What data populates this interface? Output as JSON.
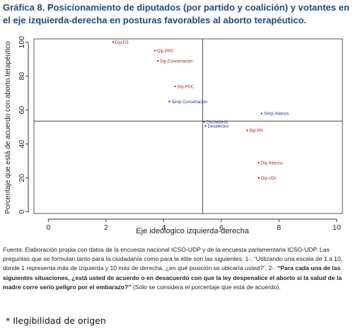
{
  "title": "Gráfica 8. Posicionamiento de diputados (por partido y coalición) y votantes en el eje izquierda-derecha  en posturas favorables al aborto terapéutico.",
  "chart_data": {
    "type": "scatter",
    "xlabel": "Eje ideologico izquierda-derecha",
    "ylabel": "Porcentaje que está de acuerdo con aborto terapéutico",
    "xlim": [
      -0.5,
      10.2
    ],
    "ylim": [
      -1,
      102
    ],
    "xticks": [
      0,
      2,
      4,
      6,
      8,
      10
    ],
    "yticks": [
      0,
      20,
      40,
      60,
      80,
      100
    ],
    "reference_lines": {
      "x": 5.35,
      "y": 53.5
    },
    "point_colors": {
      "diputados": "#b22222",
      "votantes": "#1f3c88"
    },
    "points": [
      {
        "label": "Dip.PS",
        "x": 2.25,
        "y": 100,
        "group": "diputados"
      },
      {
        "label": "Dip.PPD",
        "x": 3.7,
        "y": 95,
        "group": "diputados"
      },
      {
        "label": "Dip.Concertación",
        "x": 3.8,
        "y": 89,
        "group": "diputados"
      },
      {
        "label": "Dip.PDC",
        "x": 4.4,
        "y": 74,
        "group": "diputados"
      },
      {
        "label": "Simp.Concertación",
        "x": 4.2,
        "y": 65,
        "group": "votantes"
      },
      {
        "label": "Ciudadanía",
        "x": 5.4,
        "y": 53,
        "group": "votantes"
      },
      {
        "label": "Desafectos",
        "x": 5.45,
        "y": 50.5,
        "group": "votantes"
      },
      {
        "label": "Simp.Alianza",
        "x": 7.4,
        "y": 58,
        "group": "votantes"
      },
      {
        "label": "Dip.RN",
        "x": 6.9,
        "y": 48,
        "group": "diputados"
      },
      {
        "label": "Dip.Alianza",
        "x": 7.3,
        "y": 29,
        "group": "diputados"
      },
      {
        "label": "Dip.UDI",
        "x": 7.3,
        "y": 20,
        "group": "diputados"
      }
    ]
  },
  "source": {
    "part1": "Fuente: Elaboración propia con datos de la encuesta nacional ICSO-UDP y de la encuesta parlamentaria ICSO-UDP. Las preguntas que se formulan tanto para la ciudadanía como para la élite son las siguientes: 1-. “Utilizando una escala de 1 a 10, donde 1 representa más de izquierda  y 10 más de derecha, ¿en qué posición se ubicaría usted?”. 2-. ",
    "part2": "“Para cada una de las siguientes situaciones, ¿está usted de acuerdo o en desacuerdo con que la ley despenalice el aborto si la salud de la madre corre serio peligro por el embarazo?”",
    "part3": " (Sólo se considera el porcentaje que está de acuerdo)."
  },
  "note": "* Ilegibilidad de origen"
}
